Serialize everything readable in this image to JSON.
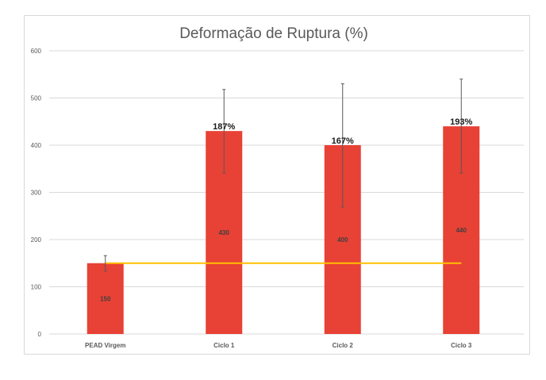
{
  "chart_data": {
    "type": "bar",
    "title": "Deformação de Ruptura (%)",
    "xlabel": "",
    "ylabel": "",
    "ylim": [
      0,
      600
    ],
    "yticks": [
      0,
      100,
      200,
      300,
      400,
      500,
      600
    ],
    "grid": true,
    "categories": [
      "PEAD Virgem",
      "Ciclo 1",
      "Ciclo 2",
      "Ciclo 3"
    ],
    "values": [
      150,
      430,
      400,
      440
    ],
    "value_labels": [
      "150",
      "430",
      "400",
      "440"
    ],
    "error_bars": [
      {
        "low": 133,
        "high": 166
      },
      {
        "low": 341,
        "high": 518
      },
      {
        "low": 269,
        "high": 530
      },
      {
        "low": 341,
        "high": 540
      }
    ],
    "annotations": [
      "",
      "187%",
      "167%",
      "193%"
    ],
    "reference_line": {
      "value": 150,
      "color": "#ffc000"
    },
    "bar_color": "#e84135"
  }
}
